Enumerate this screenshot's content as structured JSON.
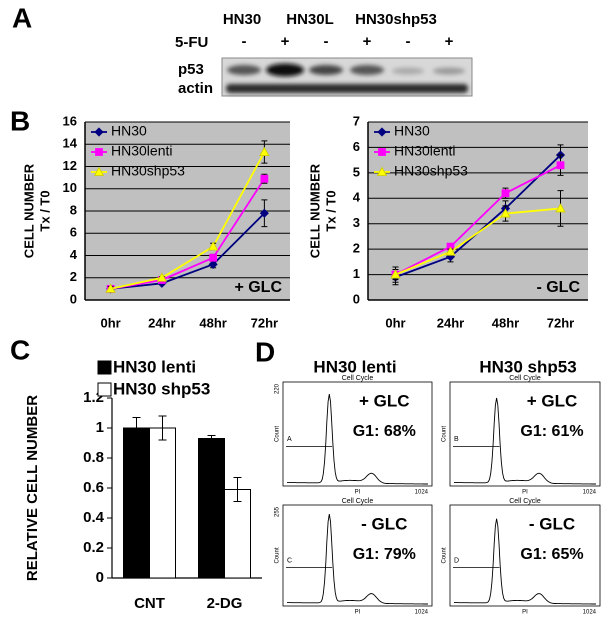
{
  "panel_labels": [
    "A",
    "B",
    "C",
    "D"
  ],
  "blot": {
    "lanes": [
      "HN30",
      "HN30L",
      "HN30shp53"
    ],
    "treatment": "5-FU",
    "signs": [
      "-",
      "+",
      "-",
      "+",
      "-",
      "+"
    ],
    "rows": [
      "p53",
      "actin"
    ]
  },
  "chart_data": [
    {
      "type": "line",
      "categories": [
        "0hr",
        "24hr",
        "48hr",
        "72hr"
      ],
      "y_label": [
        "CELL NUMBER",
        "Tx / T0"
      ],
      "annotation": "+ GLC",
      "ylim": [
        0,
        16
      ],
      "yticks": [
        0,
        2,
        4,
        6,
        8,
        10,
        12,
        14,
        16
      ],
      "grid": true,
      "background": "#c0c0c0",
      "legend": "top-left",
      "series": [
        {
          "name": "HN30",
          "color": "#000080",
          "marker": "diamond",
          "values": [
            1,
            1.5,
            3.2,
            7.8
          ],
          "errors": [
            0.2,
            0.1,
            0.3,
            1.2
          ]
        },
        {
          "name": "HN30lenti",
          "color": "#ff00ff",
          "marker": "square",
          "values": [
            1,
            1.8,
            3.8,
            10.9
          ],
          "errors": [
            0.2,
            0.1,
            0.3,
            0.4
          ]
        },
        {
          "name": "HN30shp53",
          "color": "#ffff00",
          "marker": "triangle",
          "values": [
            1,
            2,
            4.8,
            13.3
          ],
          "errors": [
            0.2,
            0.1,
            0.3,
            1.0
          ]
        }
      ]
    },
    {
      "type": "line",
      "categories": [
        "0hr",
        "24hr",
        "48hr",
        "72hr"
      ],
      "y_label": [
        "CELL NUMBER",
        "Tx / T0"
      ],
      "annotation": "- GLC",
      "ylim": [
        0,
        7
      ],
      "yticks": [
        0,
        1,
        2,
        3,
        4,
        5,
        6,
        7
      ],
      "grid": true,
      "background": "#c0c0c0",
      "legend": "top-left",
      "series": [
        {
          "name": "HN30",
          "color": "#000080",
          "marker": "diamond",
          "values": [
            0.9,
            1.7,
            3.6,
            5.7
          ],
          "errors": [
            0.3,
            0.2,
            0.3,
            0.4
          ]
        },
        {
          "name": "HN30lenti",
          "color": "#ff00ff",
          "marker": "square",
          "values": [
            1,
            2.1,
            4.2,
            5.3
          ],
          "errors": [
            0.2,
            0.1,
            0.2,
            0.4
          ]
        },
        {
          "name": "HN30shp53",
          "color": "#ffff00",
          "marker": "triangle",
          "values": [
            1,
            1.9,
            3.4,
            3.6
          ],
          "errors": [
            0.3,
            0.1,
            0.3,
            0.7
          ]
        }
      ]
    },
    {
      "type": "bar",
      "categories": [
        "CNT",
        "2-DG"
      ],
      "y_label": [
        "RELATIVE CELL NUMBER"
      ],
      "ylim": [
        0,
        1.2
      ],
      "yticks": [
        0,
        0.2,
        0.4,
        0.6,
        0.8,
        1,
        1.2
      ],
      "grid": false,
      "legend": "top-left",
      "series": [
        {
          "name": "HN30 lenti",
          "color": "#000000",
          "values": [
            1,
            0.93
          ],
          "errors": [
            0.07,
            0.02
          ]
        },
        {
          "name": "HN30 shp53",
          "color": "#ffffff",
          "values": [
            1,
            0.59
          ],
          "errors": [
            0.08,
            0.08
          ]
        }
      ]
    }
  ],
  "flow": {
    "columns": [
      "HN30 lenti",
      "HN30 shp53"
    ],
    "plots": [
      {
        "header": "Cell Cycle",
        "y_max": "220",
        "x_max": "1024",
        "x_label": "PI",
        "y_label": "Count",
        "gate": "A",
        "condition": "+ GLC",
        "g1": "G1: 68%"
      },
      {
        "header": "Cell Cycle",
        "x_max": "1024",
        "x_label": "PI",
        "y_label": "Count",
        "gate": "B",
        "condition": "+ GLC",
        "g1": "G1: 61%"
      },
      {
        "header": "Cell Cycle",
        "y_max": "255",
        "x_max": "1024",
        "x_label": "PI",
        "y_label": "Count",
        "gate": "C",
        "condition": "- GLC",
        "g1": "G1: 79%"
      },
      {
        "header": "Cell Cycle",
        "x_max": "1024",
        "x_label": "PI",
        "y_label": "Count",
        "gate": "D",
        "condition": "- GLC",
        "g1": "G1: 65%"
      }
    ]
  }
}
